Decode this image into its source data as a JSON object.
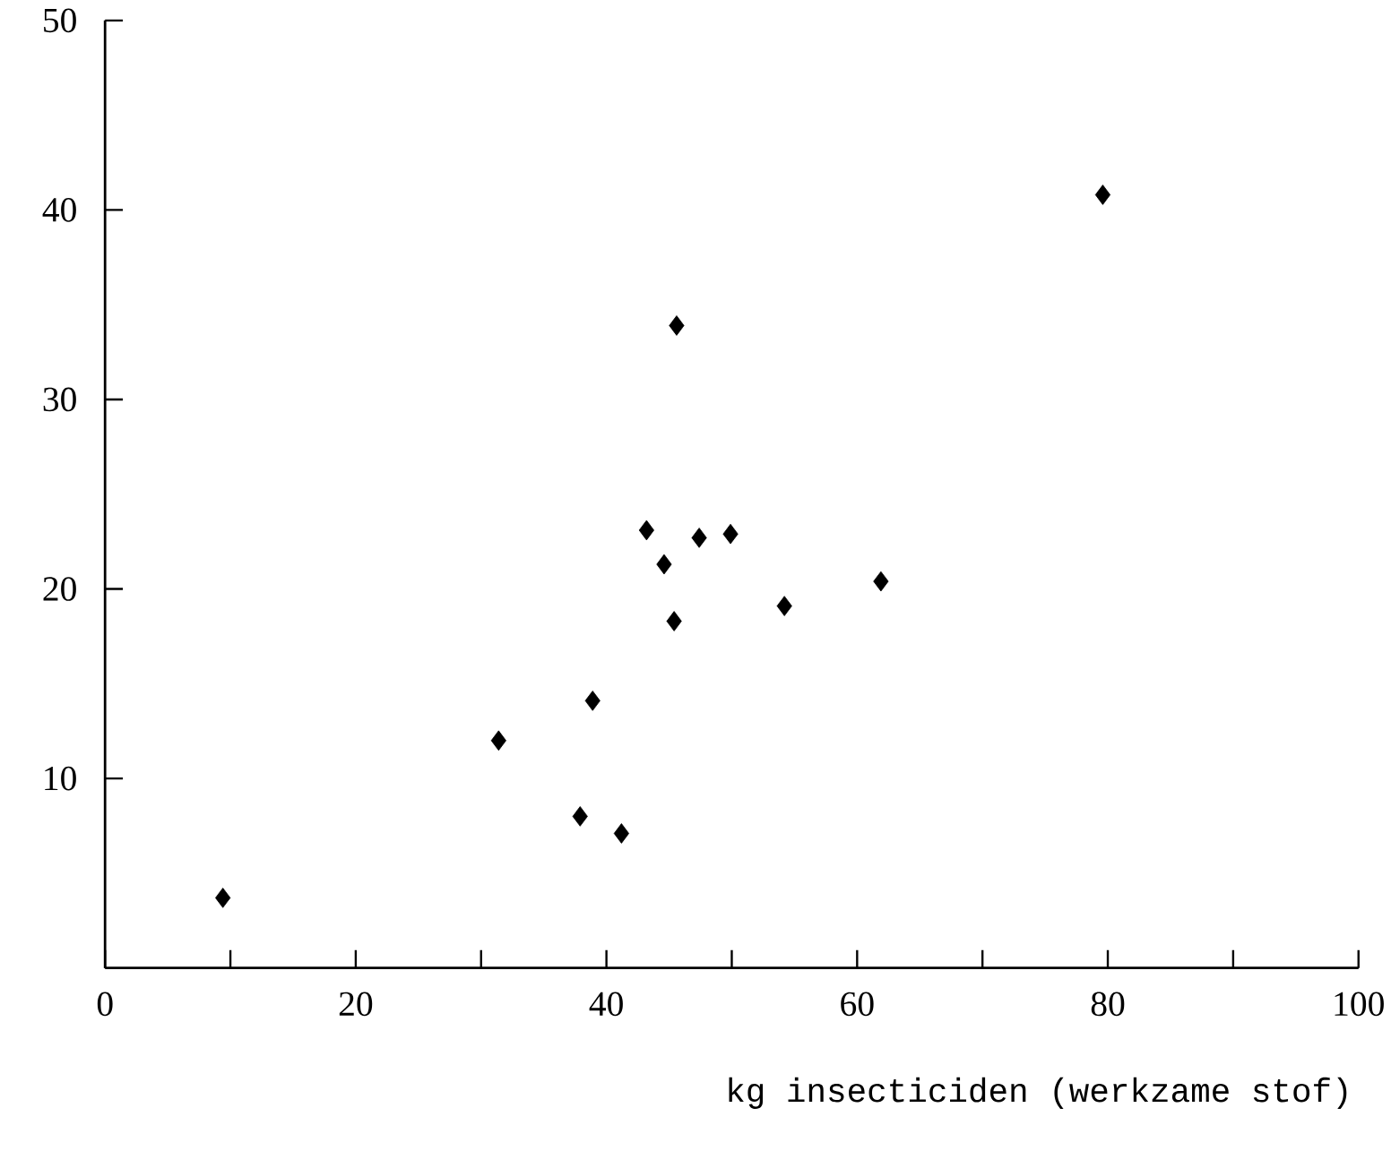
{
  "chart_data": {
    "type": "scatter",
    "xlabel": "kg insecticiden (werkzame stof)",
    "x": [
      9.4,
      31.4,
      38.9,
      37.9,
      41.2,
      45.6,
      43.2,
      44.6,
      45.4,
      47.4,
      49.9,
      54.2,
      61.9,
      79.6
    ],
    "values": [
      3.7,
      12.0,
      14.1,
      8.0,
      7.1,
      33.9,
      23.1,
      21.3,
      18.3,
      22.7,
      22.9,
      19.1,
      20.4,
      40.8
    ],
    "color": "#000000",
    "marker": "diamond",
    "grid": false,
    "xlim": [
      0,
      100
    ],
    "ylim": [
      0,
      50
    ],
    "xticks": [
      0,
      {
        "value": 10,
        "label": null
      },
      20,
      {
        "value": 30,
        "label": null
      },
      40,
      {
        "value": 50,
        "label": null
      },
      60,
      {
        "value": 70,
        "label": null
      },
      80,
      {
        "value": 90,
        "label": null
      },
      100
    ],
    "yticks": [
      10,
      20,
      30,
      40,
      50
    ]
  }
}
